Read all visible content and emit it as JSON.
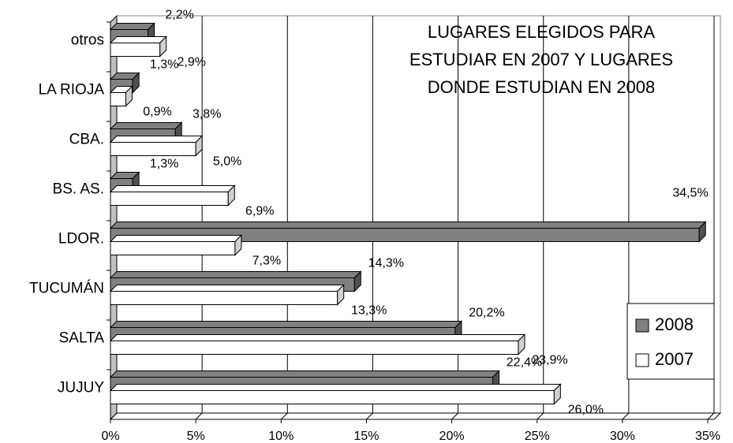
{
  "chart_data": {
    "type": "bar",
    "orientation": "horizontal",
    "title": [
      "LUGARES ELEGIDOS PARA",
      "ESTUDIAR EN 2007 Y LUGARES",
      "DONDE ESTUDIAN EN 2008"
    ],
    "categories": [
      "otros",
      "LA RIOJA",
      "CBA.",
      "BS. AS.",
      "LDOR.",
      "TUCUMÁN",
      "SALTA",
      "JUJUY"
    ],
    "series": [
      {
        "name": "2008",
        "color": "#808080",
        "values": [
          2.2,
          1.3,
          3.8,
          1.3,
          34.5,
          14.3,
          20.2,
          22.4
        ],
        "value_labels": [
          "2,2%",
          "1,3%",
          "3,8%",
          "1,3%",
          "34,5%",
          "14,3%",
          "20,2%",
          "22,4%"
        ]
      },
      {
        "name": "2007",
        "color": "#ffffff",
        "values": [
          2.9,
          0.9,
          5.0,
          6.9,
          7.3,
          13.3,
          23.9,
          26.0
        ],
        "value_labels": [
          "2,9%",
          "0,9%",
          "5,0%",
          "6,9%",
          "7,3%",
          "13,3%",
          "23,9%",
          "26,0%"
        ]
      }
    ],
    "xlim": [
      0,
      35
    ],
    "xticks": [
      {
        "value": 0,
        "label": "0%"
      },
      {
        "value": 5,
        "label": "5%"
      },
      {
        "value": 10,
        "label": "10%"
      },
      {
        "value": 15,
        "label": "15%"
      },
      {
        "value": 20,
        "label": "20%"
      },
      {
        "value": 25,
        "label": "25%"
      },
      {
        "value": 30,
        "label": "30%"
      },
      {
        "value": 35,
        "label": "35%"
      }
    ],
    "grid": true,
    "legend": "lower right"
  }
}
